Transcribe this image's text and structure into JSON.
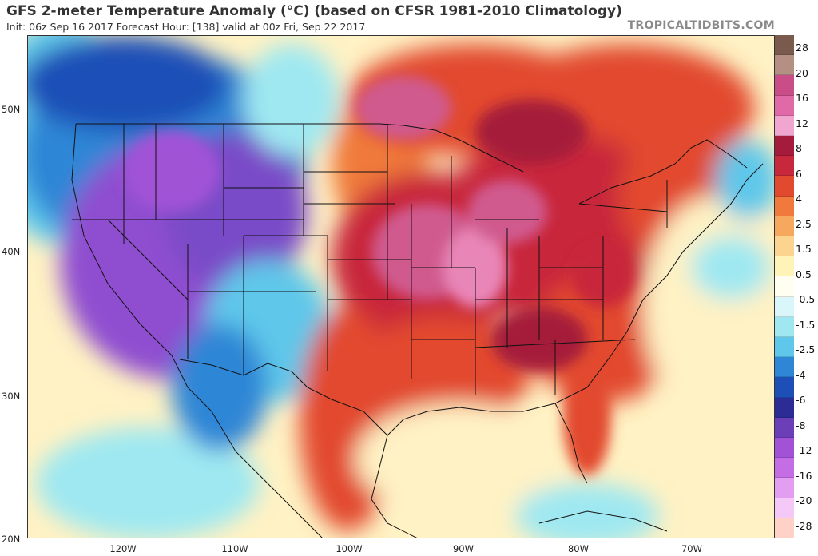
{
  "header": {
    "title": "GFS 2-meter Temperature Anomaly (°C) (based on CFSR 1981-2010 Climatology)",
    "subtitle": "Init: 06z Sep 16 2017   Forecast Hour: [138]   valid at 00z Fri, Sep 22 2017",
    "brand": "TROPICALTIDBITS.COM"
  },
  "axes": {
    "lat_labels": [
      "50N",
      "40N",
      "30N",
      "20N"
    ],
    "lon_labels": [
      "120W",
      "110W",
      "100W",
      "90W",
      "80W",
      "70W"
    ]
  },
  "legend": {
    "ticks": [
      "28",
      "20",
      "16",
      "12",
      "8",
      "6",
      "4",
      "2.5",
      "1.5",
      "0.5",
      "-0.5",
      "-1.5",
      "-2.5",
      "-4",
      "-6",
      "-8",
      "-12",
      "-16",
      "-20",
      "-28"
    ],
    "colors": [
      "#7a5a4c",
      "#b38f84",
      "#c94d86",
      "#e06aa8",
      "#f0a6cf",
      "#a51b3b",
      "#c8283b",
      "#e24a2f",
      "#f07a3b",
      "#f6a85e",
      "#fbd58f",
      "#fff3b8",
      "#fffef0",
      "#d9f7fb",
      "#9fe8f1",
      "#5fc7ea",
      "#2d86d6",
      "#1e4fb7",
      "#2b2c95",
      "#6b3fb8",
      "#a152d6",
      "#c46de5",
      "#e39ef2",
      "#f5c9f7",
      "#ffd1c7"
    ]
  },
  "map": {
    "colors": {
      "ocean_neutral": "#fff2c4",
      "warm_light": "#f6a85e",
      "warm": "#e24a2f",
      "warm_strong": "#c8283b",
      "hot": "#a51b3b",
      "very_hot": "#d05a8e",
      "pink": "#e986b8",
      "cool_light": "#9fe8f1",
      "cool": "#5fc7ea",
      "cold": "#2d86d6",
      "cold_strong": "#1e4fb7",
      "very_cold": "#6b3fb8",
      "purple": "#8f4ed0",
      "border": "#111111"
    }
  }
}
